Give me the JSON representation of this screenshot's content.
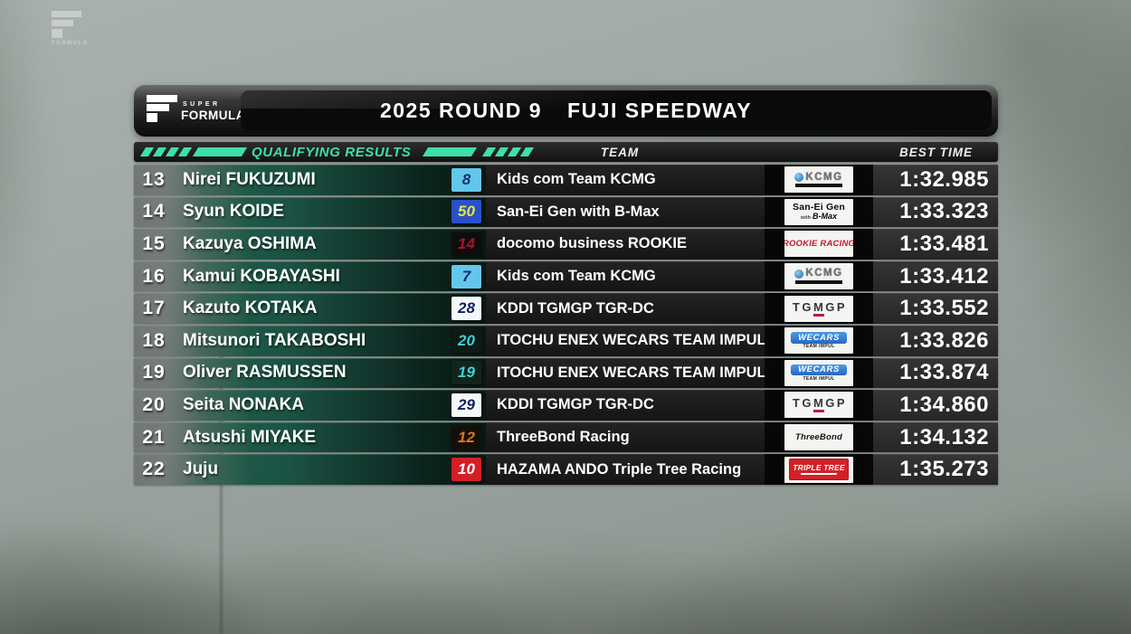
{
  "colors": {
    "accent_green": "#3EDFAB",
    "panel_dark": "#0a0a0a",
    "time_bg": "#2d2d2d"
  },
  "watermark": {
    "brand": "FORMULA"
  },
  "header": {
    "logo_top": "SUPER",
    "logo_bottom": "FORMULA",
    "title_left": "2025 ROUND 9",
    "title_right": "FUJI SPEEDWAY"
  },
  "columns": {
    "results_label": "QUALIFYING RESULTS",
    "team_label": "TEAM",
    "best_time_label": "BEST TIME"
  },
  "rows": [
    {
      "pos": "13",
      "driver": "Nirei FUKUZUMI",
      "car_number": "8",
      "plate": {
        "bg": "#63c7ec",
        "fg": "#172d6e"
      },
      "team": "Kids com Team KCMG",
      "logo": {
        "type": "kcmg",
        "text": "KCMG"
      },
      "best_time": "1:32.985"
    },
    {
      "pos": "14",
      "driver": "Syun KOIDE",
      "car_number": "50",
      "plate": {
        "bg": "#2b50c8",
        "fg": "#e8e44a"
      },
      "team": "San-Ei Gen with B-Max",
      "logo": {
        "type": "sanei",
        "line1": "San-Ei Gen",
        "line2_prefix": "with",
        "line2": "B-Max"
      },
      "best_time": "1:33.323"
    },
    {
      "pos": "15",
      "driver": "Kazuya OSHIMA",
      "car_number": "14",
      "plate": {
        "bg": "#0d0d0d",
        "fg": "#a8152c"
      },
      "team": "docomo business ROOKIE",
      "logo": {
        "type": "script",
        "text": "ROOKIE RACING",
        "color": "#c2182b"
      },
      "best_time": "1:33.481"
    },
    {
      "pos": "16",
      "driver": "Kamui KOBAYASHI",
      "car_number": "7",
      "plate": {
        "bg": "#63c7ec",
        "fg": "#172d6e"
      },
      "team": "Kids com Team KCMG",
      "logo": {
        "type": "kcmg",
        "text": "KCMG"
      },
      "best_time": "1:33.412"
    },
    {
      "pos": "17",
      "driver": "Kazuto KOTAKA",
      "car_number": "28",
      "plate": {
        "bg": "#f5f8fa",
        "fg": "#131c5a"
      },
      "team": "KDDI TGMGP TGR-DC",
      "logo": {
        "type": "tgmgp",
        "text": "TGMGP"
      },
      "best_time": "1:33.552"
    },
    {
      "pos": "18",
      "driver": "Mitsunori TAKABOSHI",
      "car_number": "20",
      "plate": {
        "bg": "#0e1a16",
        "fg": "#3ed2d2"
      },
      "team": "ITOCHU ENEX WECARS TEAM IMPUL",
      "logo": {
        "type": "wecars",
        "main": "WECARS",
        "sub": "TEAM IMPUL"
      },
      "best_time": "1:33.826"
    },
    {
      "pos": "19",
      "driver": "Oliver RASMUSSEN",
      "car_number": "19",
      "plate": {
        "bg": "#12241e",
        "fg": "#3ed2d2"
      },
      "team": "ITOCHU ENEX WECARS TEAM IMPUL",
      "logo": {
        "type": "wecars",
        "main": "WECARS",
        "sub": "TEAM IMPUL"
      },
      "best_time": "1:33.874"
    },
    {
      "pos": "20",
      "driver": "Seita NONAKA",
      "car_number": "29",
      "plate": {
        "bg": "#f5f8fa",
        "fg": "#131c5a"
      },
      "team": "KDDI TGMGP TGR-DC",
      "logo": {
        "type": "tgmgp",
        "text": "TGMGP"
      },
      "best_time": "1:34.860"
    },
    {
      "pos": "21",
      "driver": "Atsushi MIYAKE",
      "car_number": "12",
      "plate": {
        "bg": "#150f0a",
        "fg": "#e2761e"
      },
      "team": "ThreeBond Racing",
      "logo": {
        "type": "script",
        "text": "ThreeBond",
        "color": "#14140f"
      },
      "best_time": "1:34.132"
    },
    {
      "pos": "22",
      "driver": "Juju",
      "car_number": "10",
      "plate": {
        "bg": "#d41f27",
        "fg": "#ffffff"
      },
      "team": "HAZAMA ANDO Triple Tree Racing",
      "logo": {
        "type": "badge",
        "text": "TRIPLE TREE"
      },
      "best_time": "1:35.273"
    }
  ]
}
